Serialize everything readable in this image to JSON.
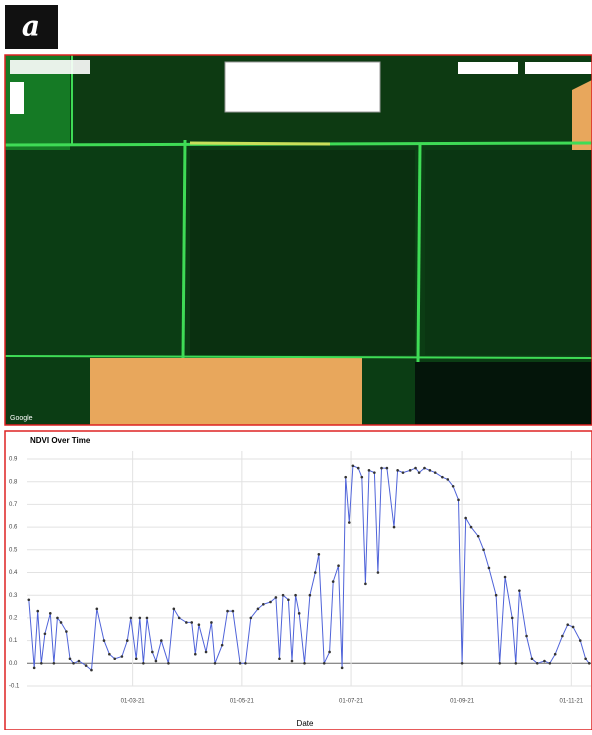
{
  "panel_label": "a",
  "map": {
    "attribution": "Google"
  },
  "chart_data": {
    "type": "line",
    "title": "NDVI Over Time",
    "x_label": "Date",
    "color": "#4f63d9",
    "grid": true,
    "x": [
      2,
      5,
      7,
      9,
      11,
      14,
      16,
      18,
      20,
      23,
      25,
      27,
      30,
      34,
      37,
      40,
      44,
      47,
      50,
      54,
      57,
      59,
      62,
      64,
      66,
      68,
      71,
      73,
      76,
      80,
      83,
      86,
      90,
      93,
      95,
      97,
      101,
      104,
      106,
      110,
      113,
      116,
      120,
      123,
      126,
      130,
      133,
      137,
      140,
      142,
      144,
      147,
      149,
      151,
      153,
      156,
      159,
      162,
      164,
      167,
      170,
      172,
      175,
      177,
      179,
      181,
      183,
      186,
      188,
      190,
      192,
      195,
      197,
      199,
      202,
      206,
      208,
      211,
      215,
      218,
      220,
      223,
      226,
      229,
      233,
      236,
      239,
      242,
      244,
      246,
      249,
      253,
      256,
      259,
      263,
      265,
      268,
      272,
      274,
      276,
      280,
      283,
      286,
      290,
      293,
      296,
      300,
      303,
      306,
      310,
      313,
      315
    ],
    "values": [
      0.28,
      -0.02,
      0.23,
      0.0,
      0.13,
      0.22,
      0.0,
      0.2,
      0.18,
      0.14,
      0.02,
      0.0,
      0.01,
      -0.01,
      -0.03,
      0.24,
      0.1,
      0.04,
      0.02,
      0.03,
      0.1,
      0.2,
      0.02,
      0.2,
      0.0,
      0.2,
      0.05,
      0.01,
      0.1,
      0.0,
      0.24,
      0.2,
      0.18,
      0.18,
      0.04,
      0.17,
      0.05,
      0.18,
      0.0,
      0.08,
      0.23,
      0.23,
      0.0,
      0.0,
      0.2,
      0.24,
      0.26,
      0.27,
      0.29,
      0.02,
      0.3,
      0.28,
      0.01,
      0.3,
      0.22,
      0.0,
      0.3,
      0.4,
      0.48,
      0.0,
      0.05,
      0.36,
      0.43,
      -0.02,
      0.82,
      0.62,
      0.87,
      0.86,
      0.82,
      0.35,
      0.85,
      0.84,
      0.4,
      0.86,
      0.86,
      0.6,
      0.85,
      0.84,
      0.85,
      0.86,
      0.84,
      0.86,
      0.85,
      0.84,
      0.82,
      0.81,
      0.78,
      0.72,
      0.0,
      0.64,
      0.6,
      0.56,
      0.5,
      0.42,
      0.3,
      0.0,
      0.38,
      0.2,
      0.0,
      0.32,
      0.12,
      0.02,
      0.0,
      0.01,
      0.0,
      0.04,
      0.12,
      0.17,
      0.16,
      0.1,
      0.02,
      0.0
    ],
    "xlim": [
      1,
      316
    ],
    "xticks": [
      {
        "value": 60,
        "label": "01-03-21"
      },
      {
        "value": 121,
        "label": "01-05-21"
      },
      {
        "value": 182,
        "label": "01-07-21"
      },
      {
        "value": 244,
        "label": "01-09-21"
      },
      {
        "value": 305,
        "label": "01-11-21"
      }
    ],
    "ylim": [
      -0.1,
      0.9
    ],
    "yticks": [
      0.9,
      0.8,
      0.7,
      0.6,
      0.5,
      0.4,
      0.3,
      0.2,
      0.1,
      {
        "value": 0,
        "label": "0.0"
      },
      -0.1
    ]
  }
}
